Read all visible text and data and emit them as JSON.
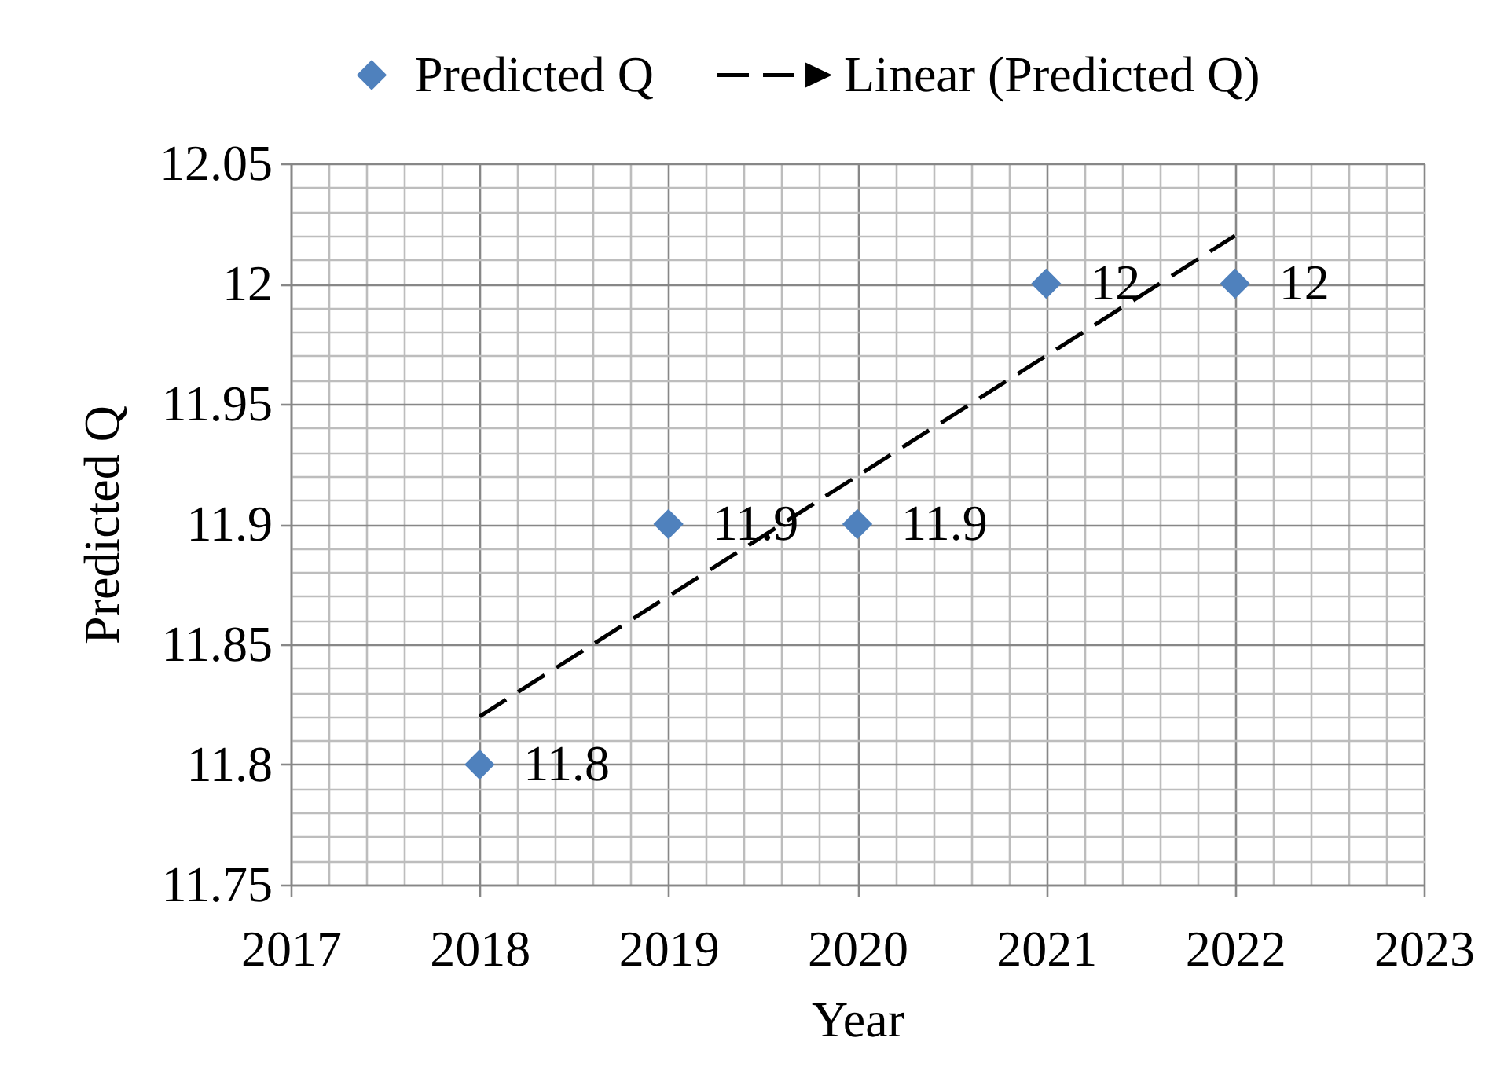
{
  "chart_data": {
    "type": "scatter",
    "xlabel": "Year",
    "ylabel": "Predicted Q",
    "grid": true,
    "legend": "top",
    "xlim": [
      2017,
      2023
    ],
    "xticks": [
      2017,
      {
        "value": 2017.2,
        "label": null
      },
      {
        "value": 2017.4,
        "label": null
      },
      {
        "value": 2017.6,
        "label": null
      },
      {
        "value": 2017.8,
        "label": null
      },
      2018,
      {
        "value": 2018.2,
        "label": null
      },
      {
        "value": 2018.4,
        "label": null
      },
      {
        "value": 2018.6,
        "label": null
      },
      {
        "value": 2018.8,
        "label": null
      },
      2019,
      {
        "value": 2019.2,
        "label": null
      },
      {
        "value": 2019.4,
        "label": null
      },
      {
        "value": 2019.6,
        "label": null
      },
      {
        "value": 2019.8,
        "label": null
      },
      2020,
      {
        "value": 2020.2,
        "label": null
      },
      {
        "value": 2020.4,
        "label": null
      },
      {
        "value": 2020.6,
        "label": null
      },
      {
        "value": 2020.8,
        "label": null
      },
      2021,
      {
        "value": 2021.2,
        "label": null
      },
      {
        "value": 2021.4,
        "label": null
      },
      {
        "value": 2021.6,
        "label": null
      },
      {
        "value": 2021.8,
        "label": null
      },
      2022,
      {
        "value": 2022.2,
        "label": null
      },
      {
        "value": 2022.4,
        "label": null
      },
      {
        "value": 2022.6,
        "label": null
      },
      {
        "value": 2022.8,
        "label": null
      },
      2023
    ],
    "ylim": [
      11.75,
      12.05
    ],
    "yticks": [
      11.75,
      {
        "value": 11.76,
        "label": null
      },
      {
        "value": 11.77,
        "label": null
      },
      {
        "value": 11.78,
        "label": null
      },
      {
        "value": 11.79,
        "label": null
      },
      11.8,
      {
        "value": 11.81,
        "label": null
      },
      {
        "value": 11.82,
        "label": null
      },
      {
        "value": 11.83,
        "label": null
      },
      {
        "value": 11.84,
        "label": null
      },
      11.85,
      {
        "value": 11.86,
        "label": null
      },
      {
        "value": 11.87,
        "label": null
      },
      {
        "value": 11.88,
        "label": null
      },
      {
        "value": 11.89,
        "label": null
      },
      11.9,
      {
        "value": 11.91,
        "label": null
      },
      {
        "value": 11.92,
        "label": null
      },
      {
        "value": 11.93,
        "label": null
      },
      {
        "value": 11.94,
        "label": null
      },
      11.95,
      {
        "value": 11.96,
        "label": null
      },
      {
        "value": 11.97,
        "label": null
      },
      {
        "value": 11.98,
        "label": null
      },
      {
        "value": 11.99,
        "label": null
      },
      12,
      {
        "value": 12.01,
        "label": null
      },
      {
        "value": 12.02,
        "label": null
      },
      {
        "value": 12.03,
        "label": null
      },
      {
        "value": 12.04,
        "label": null
      },
      12.05
    ],
    "series": [
      {
        "name": "Predicted Q",
        "color": "#4f81bd",
        "marker": "diamond",
        "data_labels": true,
        "x": [
          2018,
          2019,
          2020,
          2021,
          2022
        ],
        "values": [
          11.8,
          11.9,
          11.9,
          12,
          12
        ]
      },
      {
        "name": "Linear (Predicted Q)",
        "type": "line",
        "color": "#000000",
        "marker": "none",
        "line_style": "dashed",
        "x": [
          2018,
          2022
        ],
        "values": [
          11.82,
          12.02
        ]
      }
    ]
  }
}
